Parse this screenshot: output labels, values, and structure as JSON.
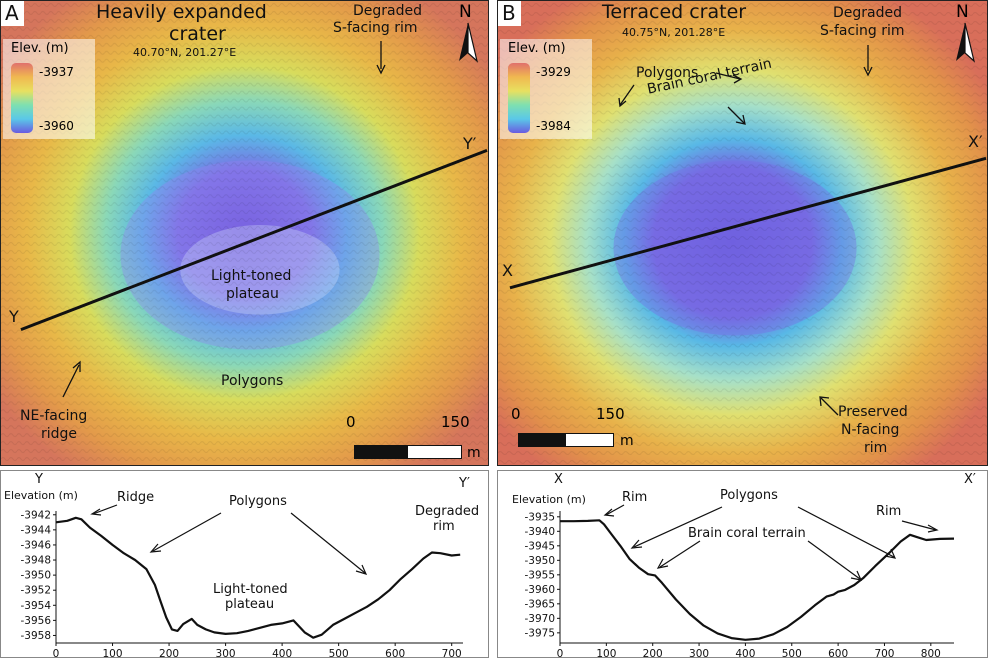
{
  "panel_a": {
    "letter": "A",
    "title_line1": "Heavily expanded",
    "title_line2": "crater",
    "coords": "40.70°N, 201.27°E",
    "legend_title": "Elev. (m)",
    "legend_high": "-3937",
    "legend_low": "-3960",
    "north": "N",
    "label_degraded_line1": "Degraded",
    "label_degraded_line2": "S-facing rim",
    "label_plateau_line1": "Light-toned",
    "label_plateau_line2": "plateau",
    "label_polygons": "Polygons",
    "label_ridge_line1": "NE-facing",
    "label_ridge_line2": "ridge",
    "endpoint_start": "Y",
    "endpoint_end": "Y′",
    "scale_zero": "0",
    "scale_max": "150",
    "scale_unit": "m"
  },
  "panel_b": {
    "letter": "B",
    "title": "Terraced crater",
    "coords": "40.75°N, 201.28°E",
    "legend_title": "Elev. (m)",
    "legend_high": "-3929",
    "legend_low": "-3984",
    "north": "N",
    "label_degraded_line1": "Degraded",
    "label_degraded_line2": "S-facing rim",
    "label_polygons": "Polygons",
    "label_brain": "Brain coral terrain",
    "label_preserved_line1": "Preserved",
    "label_preserved_line2": "N-facing",
    "label_preserved_line3": "rim",
    "endpoint_start": "X",
    "endpoint_end": "X′",
    "scale_zero": "0",
    "scale_max": "150",
    "scale_unit": "m"
  },
  "profile_a": {
    "start": "Y",
    "end": "Y′",
    "ylabel": "Elevation (m)",
    "label_ridge": "Ridge",
    "label_polygons": "Polygons",
    "label_plateau_line1": "Light-toned",
    "label_plateau_line2": "plateau",
    "label_degraded_line1": "Degraded",
    "label_degraded_line2": "rim"
  },
  "profile_b": {
    "start": "X",
    "end": "X′",
    "ylabel": "Elevation (m)",
    "label_rim_left": "Rim",
    "label_polygons": "Polygons",
    "label_brain": "Brain coral terrain",
    "label_rim_right": "Rim"
  },
  "chart_data": [
    {
      "type": "line",
      "ylabel": "Elevation (m)",
      "xlim": [
        0,
        720
      ],
      "ylim": [
        -3959,
        -3941.5
      ],
      "xticks": [
        0,
        100,
        200,
        300,
        400,
        500,
        600,
        700
      ],
      "yticks": [
        -3942,
        -3944,
        -3946,
        -3948,
        -3950,
        -3952,
        -3954,
        -3956,
        -3958
      ],
      "series": [
        {
          "x": [
            0,
            20,
            35,
            45,
            60,
            80,
            100,
            120,
            140,
            160,
            175,
            185,
            195,
            205,
            215,
            225,
            240,
            250,
            265,
            280,
            300,
            320,
            340,
            360,
            380,
            400,
            420,
            440,
            455,
            470,
            490,
            510,
            530,
            550,
            570,
            590,
            610,
            630,
            650,
            665,
            680,
            700,
            715
          ],
          "y": [
            -3943,
            -3942.8,
            -3942.4,
            -3942.6,
            -3943.7,
            -3944.8,
            -3946.0,
            -3947.1,
            -3948.0,
            -3949.2,
            -3951.3,
            -3953.5,
            -3955.6,
            -3957.2,
            -3957.4,
            -3956.5,
            -3955.8,
            -3956.6,
            -3957.2,
            -3957.6,
            -3957.8,
            -3957.7,
            -3957.4,
            -3957.0,
            -3956.6,
            -3956.4,
            -3956.0,
            -3957.6,
            -3958.3,
            -3957.9,
            -3956.6,
            -3955.8,
            -3955.0,
            -3954.2,
            -3953.2,
            -3952.0,
            -3950.5,
            -3949.2,
            -3947.8,
            -3947.0,
            -3947.1,
            -3947.4,
            -3947.3
          ]
        }
      ]
    },
    {
      "type": "line",
      "ylabel": "Elevation (m)",
      "xlim": [
        0,
        850
      ],
      "ylim": [
        -3978.5,
        -3933
      ],
      "xticks": [
        0,
        100,
        200,
        300,
        400,
        500,
        600,
        700,
        800
      ],
      "yticks": [
        -3935,
        -3940,
        -3945,
        -3950,
        -3955,
        -3960,
        -3965,
        -3970,
        -3975
      ],
      "series": [
        {
          "x": [
            0,
            30,
            60,
            85,
            95,
            110,
            130,
            150,
            170,
            190,
            205,
            220,
            250,
            280,
            310,
            340,
            370,
            400,
            430,
            460,
            490,
            520,
            550,
            575,
            590,
            600,
            615,
            635,
            655,
            680,
            710,
            735,
            755,
            770,
            790,
            820,
            850
          ],
          "y": [
            -3936.5,
            -3936.5,
            -3936.4,
            -3936.2,
            -3937.6,
            -3940.8,
            -3945.0,
            -3949.5,
            -3952.5,
            -3954.8,
            -3955.2,
            -3957.8,
            -3963.5,
            -3968.5,
            -3972.5,
            -3975.2,
            -3976.8,
            -3977.4,
            -3977.0,
            -3975.5,
            -3973.0,
            -3969.5,
            -3965.5,
            -3962.5,
            -3961.8,
            -3960.8,
            -3960.2,
            -3958.5,
            -3956.0,
            -3952.0,
            -3947.5,
            -3943.5,
            -3941.2,
            -3942.0,
            -3943.0,
            -3942.6,
            -3942.5
          ]
        }
      ]
    }
  ]
}
